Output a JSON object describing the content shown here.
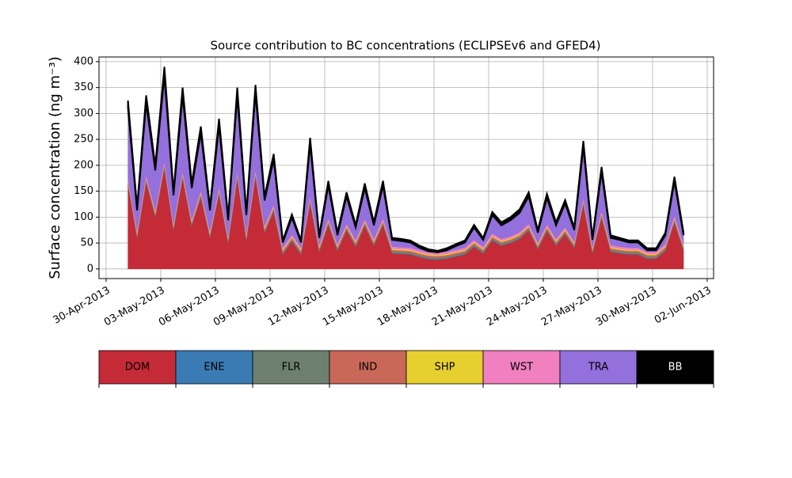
{
  "chart_data": {
    "type": "stacked_area",
    "title": "Source contribution to BC concentrations (ECLIPSEv6 and GFED4)",
    "y_label": "Surface concentration (ng m⁻³)",
    "x": [
      1.2,
      1.7,
      2.2,
      2.7,
      3.2,
      3.7,
      4.2,
      4.7,
      5.2,
      5.7,
      6.2,
      6.7,
      7.2,
      7.7,
      8.2,
      8.7,
      9.2,
      9.7,
      10.2,
      10.7,
      11.2,
      11.7,
      12.2,
      12.7,
      13.2,
      13.7,
      14.2,
      14.7,
      15.2,
      15.7,
      16.2,
      16.7,
      17.2,
      17.7,
      18.2,
      18.7,
      19.2,
      19.7,
      20.2,
      20.7,
      21.2,
      21.7,
      22.2,
      22.7,
      23.2,
      23.7,
      24.2,
      24.7,
      25.2,
      25.7,
      26.2,
      26.7,
      27.2,
      27.7,
      28.2,
      28.7,
      29.2,
      29.7,
      30.2,
      30.7,
      31.2,
      31.7
    ],
    "series": [
      {
        "name": "DOM",
        "color": "#c52a37",
        "values": [
          163,
          60,
          168,
          100,
          195,
          75,
          175,
          83,
          138,
          60,
          145,
          50,
          175,
          55,
          178,
          70,
          111,
          28,
          53,
          28,
          127,
          33,
          85,
          35,
          74,
          43,
          83,
          45,
          85,
          30,
          29,
          28,
          23,
          19,
          18,
          20,
          24,
          28,
          43,
          30,
          55,
          45,
          50,
          58,
          74,
          38,
          73,
          45,
          67,
          40,
          124,
          30,
          99,
          33,
          30,
          28,
          28,
          20,
          20,
          35,
          89,
          35
        ]
      },
      {
        "name": "ENE",
        "color": "#3a7bb4",
        "values": [
          1,
          1,
          1,
          1,
          1,
          1,
          1,
          1,
          1,
          1,
          1,
          1,
          1,
          1,
          1,
          1,
          1,
          1,
          1,
          1,
          1,
          1,
          1,
          1,
          1,
          1,
          1,
          1,
          1,
          1,
          1,
          1,
          1,
          1,
          1,
          1,
          1,
          1,
          1,
          1,
          1,
          1,
          1,
          1,
          1,
          1,
          1,
          1,
          1,
          1,
          1,
          1,
          1,
          1,
          1,
          1,
          1,
          1,
          1,
          1,
          1,
          1
        ]
      },
      {
        "name": "FLR",
        "color": "#6d8070",
        "values": [
          3,
          3,
          3,
          3,
          3,
          3,
          3,
          3,
          3,
          3,
          3,
          3,
          3,
          3,
          3,
          3,
          3,
          3,
          3,
          3,
          3,
          3,
          3,
          3,
          3,
          3,
          3,
          3,
          3,
          3,
          3,
          3,
          3,
          3,
          3,
          3,
          3,
          3,
          3,
          3,
          3,
          3,
          3,
          3,
          3,
          3,
          3,
          3,
          3,
          3,
          3,
          3,
          3,
          3,
          3,
          3,
          3,
          3,
          3,
          3,
          3,
          3
        ]
      },
      {
        "name": "IND",
        "color": "#c96858",
        "values": [
          3,
          3,
          3,
          3,
          3,
          3,
          3,
          3,
          3,
          3,
          3,
          3,
          3,
          3,
          3,
          3,
          3,
          3,
          3,
          3,
          3,
          3,
          3,
          3,
          3,
          3,
          3,
          3,
          3,
          3,
          3,
          3,
          3,
          3,
          3,
          3,
          3,
          3,
          3,
          3,
          3,
          3,
          3,
          3,
          3,
          3,
          3,
          3,
          3,
          3,
          3,
          3,
          3,
          3,
          3,
          3,
          3,
          3,
          3,
          3,
          3,
          3
        ]
      },
      {
        "name": "SHP",
        "color": "#e8cf30",
        "values": [
          2,
          2,
          2,
          2,
          2,
          2,
          2,
          2,
          2,
          2,
          2,
          2,
          2,
          2,
          2,
          2,
          2,
          2,
          2,
          2,
          2,
          2,
          2,
          2,
          2,
          2,
          2,
          2,
          2,
          2,
          2,
          2,
          2,
          2,
          2,
          2,
          2,
          2,
          2,
          2,
          2,
          2,
          2,
          2,
          2,
          2,
          2,
          2,
          2,
          2,
          2,
          2,
          2,
          2,
          2,
          2,
          2,
          2,
          2,
          2,
          2,
          2
        ]
      },
      {
        "name": "WST",
        "color": "#f080c0",
        "values": [
          4,
          4,
          4,
          4,
          4,
          4,
          4,
          4,
          4,
          4,
          4,
          4,
          4,
          4,
          4,
          4,
          4,
          4,
          4,
          4,
          4,
          4,
          4,
          4,
          4,
          4,
          4,
          4,
          4,
          4,
          4,
          4,
          4,
          4,
          4,
          4,
          4,
          4,
          4,
          4,
          4,
          4,
          4,
          4,
          4,
          4,
          4,
          4,
          4,
          4,
          4,
          4,
          4,
          4,
          4,
          4,
          4,
          4,
          4,
          4,
          4,
          4
        ]
      },
      {
        "name": "TRA",
        "color": "#9370db",
        "values": [
          134,
          40,
          139,
          77,
          164,
          54,
          146,
          60,
          111,
          40,
          118,
          31,
          146,
          36,
          148,
          49,
          87,
          10,
          33,
          10,
          101,
          14,
          63,
          17,
          53,
          24,
          60,
          26,
          63,
          13,
          12,
          10,
          5,
          2,
          1,
          3,
          7,
          10,
          24,
          13,
          36,
          26,
          31,
          37,
          53,
          19,
          51,
          26,
          46,
          22,
          98,
          13,
          75,
          14,
          13,
          10,
          10,
          3,
          3,
          17,
          67,
          17
        ]
      },
      {
        "name": "BB",
        "color": "#000000",
        "values": [
          15,
          7,
          15,
          10,
          18,
          8,
          16,
          9,
          13,
          7,
          14,
          6,
          16,
          6,
          16,
          8,
          11,
          4,
          6,
          4,
          12,
          5,
          9,
          5,
          8,
          5,
          9,
          6,
          9,
          4,
          4,
          4,
          4,
          4,
          3,
          4,
          4,
          4,
          5,
          4,
          6,
          6,
          6,
          7,
          8,
          5,
          8,
          6,
          7,
          5,
          12,
          4,
          10,
          5,
          4,
          4,
          4,
          4,
          4,
          5,
          9,
          5
        ]
      }
    ],
    "xlim": [
      -0.39,
      33.35
    ],
    "xticks": [
      {
        "value": 0,
        "label": "30-Apr-2013"
      },
      {
        "value": 3,
        "label": "03-May-2013"
      },
      {
        "value": 6,
        "label": "06-May-2013"
      },
      {
        "value": 9,
        "label": "09-May-2013"
      },
      {
        "value": 12,
        "label": "12-May-2013"
      },
      {
        "value": 15,
        "label": "15-May-2013"
      },
      {
        "value": 18,
        "label": "18-May-2013"
      },
      {
        "value": 21,
        "label": "21-May-2013"
      },
      {
        "value": 24,
        "label": "24-May-2013"
      },
      {
        "value": 27,
        "label": "27-May-2013"
      },
      {
        "value": 30,
        "label": "30-May-2013"
      },
      {
        "value": 33,
        "label": "02-Jun-2013"
      }
    ],
    "ylim": [
      -18.6,
      409
    ],
    "yticks": [
      0,
      50,
      100,
      150,
      200,
      250,
      300,
      350,
      400
    ],
    "grid": true
  }
}
